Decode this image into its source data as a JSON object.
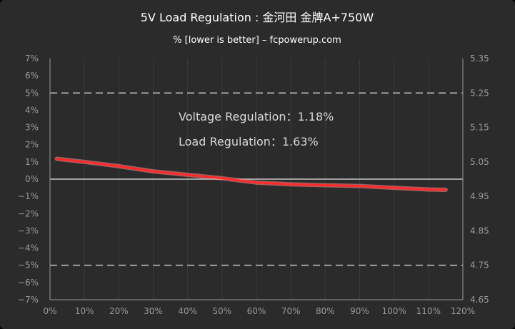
{
  "chart_data": {
    "type": "line",
    "title": "5V Load Regulation : 金河田 金牌A+750W",
    "subtitle": "% [lower is better] –  fcpowerup.com",
    "x": [
      2,
      10,
      20,
      30,
      40,
      50,
      60,
      70,
      80,
      90,
      100,
      110,
      115
    ],
    "series": [
      {
        "values": [
          1.18,
          1.0,
          0.75,
          0.45,
          0.25,
          0.05,
          -0.2,
          -0.3,
          -0.35,
          -0.4,
          -0.5,
          -0.6,
          -0.62
        ]
      }
    ],
    "xlim": [
      0,
      120
    ],
    "ylim": [
      -7,
      7
    ],
    "y2lim": [
      4.65,
      5.35
    ],
    "xticks": [
      "0%",
      "10%",
      "20%",
      "30%",
      "40%",
      "50%",
      "60%",
      "70%",
      "80%",
      "90%",
      "100%",
      "110%",
      "120%"
    ],
    "yticks": [
      "7%",
      "6%",
      "5%",
      "4%",
      "3%",
      "2%",
      "1%",
      "0%",
      "−1%",
      "−2%",
      "−3%",
      "−4%",
      "−5%",
      "−6%",
      "−7%"
    ],
    "y2ticks": [
      "5.35",
      "5.25",
      "5.15",
      "5.05",
      "4.95",
      "4.85",
      "4.75",
      "4.65"
    ],
    "reference_lines": [
      5,
      -5
    ],
    "annotations": {
      "voltage_regulation": "Voltage Regulation：1.18%",
      "load_regulation": "Load  Regulation：1.63%"
    },
    "grid": "vertical",
    "legend": "none",
    "colors": {
      "background": "#2b2b2b",
      "plot_background": "#2b2b2b",
      "gridline": "#3a3a3a",
      "axis": "#9a9a9a",
      "reference_line": "#bbbbbb",
      "zero_line": "#c8c8c8",
      "series": "#ff2a2a",
      "series_glow": "#ff8a8a"
    }
  }
}
